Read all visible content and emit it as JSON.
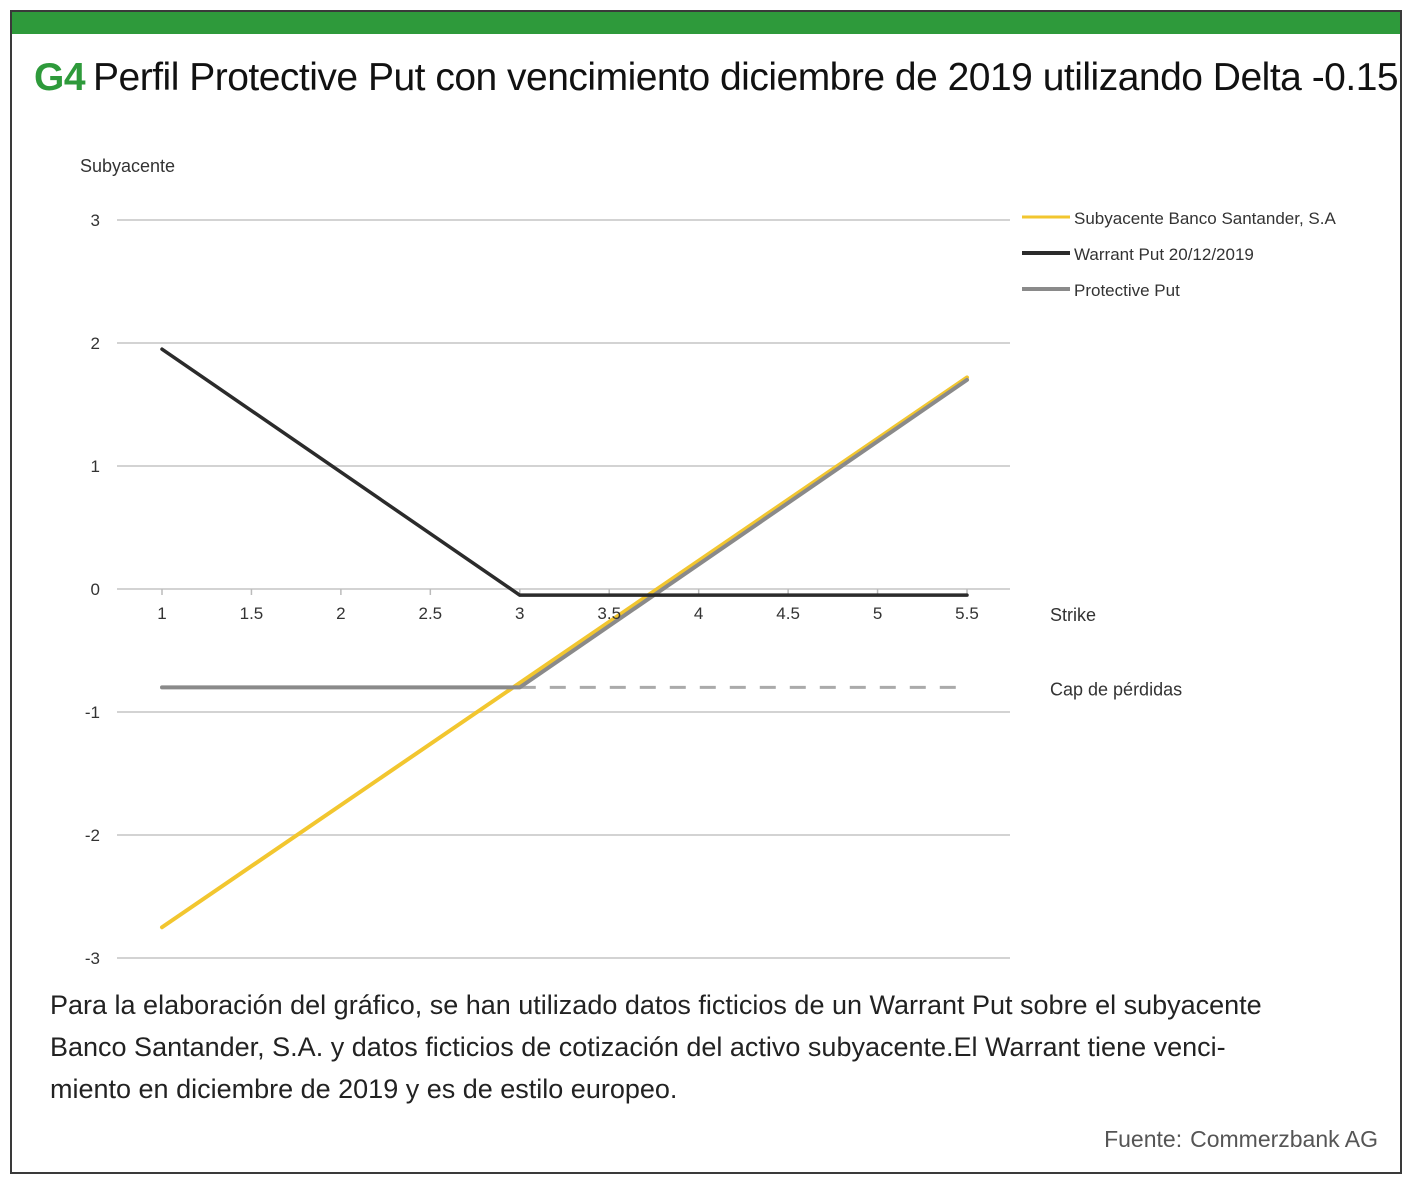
{
  "header": {
    "accent_color": "#2e9a3b",
    "code": "G4",
    "title": "Perfil Protective Put con vencimiento diciembre de 2019 utilizando Delta -0.15"
  },
  "caption_lines": [
    "Para la elaboración del gráfico, se han utilizado datos ficticios de un Warrant Put sobre el subyacente",
    "Banco Santander, S.A. y datos ficticios de cotización del activo subyacente.El Warrant tiene venci-",
    "miento en diciembre de 2019 y es de estilo europeo."
  ],
  "source": {
    "label": "Fuente:",
    "value": "Commerzbank AG"
  },
  "chart_data": {
    "type": "line",
    "ylabel": "Subyacente",
    "xlabel": "Strike",
    "ylim": [
      -3,
      3
    ],
    "xlim": [
      1,
      5.5
    ],
    "yticks": [
      "3",
      "2",
      "1",
      "0",
      "-1",
      "-2",
      "-3"
    ],
    "xticks": [
      "1",
      "1.5",
      "2",
      "2.5",
      "3",
      "3.5",
      "4",
      "4.5",
      "5",
      "5.5"
    ],
    "grid": true,
    "legend_position": "top-right",
    "series": [
      {
        "name": "Subyacente Banco Santander, S.A",
        "color": "#f2c62f",
        "x": [
          1,
          5.5
        ],
        "y": [
          -2.75,
          1.72
        ]
      },
      {
        "name": "Warrant Put 20/12/2019",
        "color": "#2b2b2b",
        "x": [
          1,
          3,
          5.5
        ],
        "y": [
          1.95,
          -0.05,
          -0.05
        ]
      },
      {
        "name": "Protective Put",
        "color": "#8a8a8a",
        "x": [
          1,
          3,
          5.5
        ],
        "y": [
          -0.8,
          -0.8,
          1.7
        ]
      }
    ],
    "annotations": [
      {
        "text": "Cap de pérdidas",
        "y": -0.8,
        "style": "dashed",
        "x_range": [
          3,
          5.5
        ]
      }
    ]
  }
}
